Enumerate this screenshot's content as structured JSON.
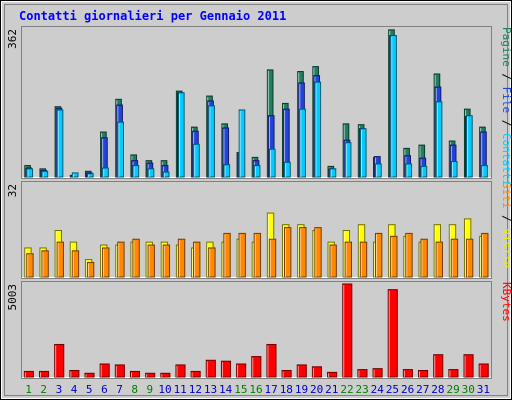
{
  "chart_data": {
    "type": "bar",
    "title": "Contatti giornalieri per Gennaio 2011",
    "categories": [
      "1",
      "2",
      "3",
      "4",
      "5",
      "6",
      "7",
      "8",
      "9",
      "10",
      "11",
      "12",
      "13",
      "14",
      "15",
      "16",
      "17",
      "18",
      "19",
      "20",
      "21",
      "22",
      "23",
      "24",
      "25",
      "26",
      "27",
      "28",
      "29",
      "30",
      "31"
    ],
    "weekend_days": [
      "1",
      "2",
      "8",
      "9",
      "15",
      "16",
      "22",
      "23",
      "29",
      "30"
    ],
    "panels": [
      {
        "id": "hits",
        "max_label": "362",
        "ylim": [
          0,
          362
        ],
        "series": [
          {
            "name": "Pagine",
            "color": "#1f7f5f",
            "values": [
              28,
              20,
              172,
              4,
              14,
              110,
              190,
              54,
              40,
              40,
              210,
              122,
              198,
              130,
              60,
              48,
              262,
              180,
              258,
              270,
              26,
              130,
              128,
              48,
              360,
              70,
              78,
              252,
              88,
              166,
              122
            ]
          },
          {
            "name": "File",
            "color": "#2244dd",
            "values": [
              22,
              16,
              168,
              4,
              10,
              96,
              176,
              40,
              34,
              28,
              206,
              112,
              186,
              120,
              56,
              40,
              150,
              166,
              230,
              248,
              20,
              90,
              118,
              50,
              346,
              52,
              46,
              220,
              78,
              148,
              110
            ]
          },
          {
            "name": "Contatti",
            "color": "#00ccff",
            "values": [
              20,
              14,
              164,
              10,
              8,
              22,
              134,
              28,
              20,
              12,
              206,
              80,
              174,
              30,
              164,
              28,
              68,
              36,
              166,
              232,
              20,
              84,
              118,
              32,
              346,
              32,
              26,
              184,
              38,
              150,
              28
            ]
          }
        ]
      },
      {
        "id": "visits",
        "max_label": "32",
        "ylim": [
          0,
          32
        ],
        "series": [
          {
            "name": "Visite",
            "color": "#ffff00",
            "values": [
              10,
              10,
              16,
              12,
              6,
              11,
              11,
              12,
              12,
              12,
              11,
              10,
              12,
              12,
              13,
              12,
              22,
              18,
              18,
              16,
              12,
              16,
              18,
              12,
              18,
              14,
              12,
              18,
              18,
              20,
              14
            ]
          },
          {
            "name": "Siti",
            "color": "#ff8800",
            "values": [
              8,
              9,
              12,
              9,
              5,
              10,
              12,
              13,
              11,
              11,
              13,
              12,
              10,
              15,
              15,
              15,
              13,
              17,
              17,
              17,
              11,
              12,
              12,
              15,
              14,
              15,
              13,
              12,
              13,
              13,
              15
            ]
          }
        ]
      },
      {
        "id": "kbytes",
        "max_label": "5003",
        "ylim": [
          0,
          5003
        ],
        "series": [
          {
            "name": "KBytes",
            "color": "#ff0000",
            "values": [
              300,
              300,
              1750,
              350,
              200,
              700,
              650,
              300,
              200,
              200,
              650,
              300,
              900,
              850,
              700,
              1100,
              1750,
              350,
              650,
              550,
              250,
              5003,
              400,
              450,
              4700,
              400,
              350,
              1200,
              400,
              1200,
              700
            ]
          }
        ]
      }
    ],
    "right_legends": [
      {
        "parts": [
          {
            "text": "Pagine",
            "color": "#1f7f5f"
          },
          {
            "text": " / ",
            "color": "#000000"
          },
          {
            "text": "File",
            "color": "#2244dd"
          },
          {
            "text": " / ",
            "color": "#000000"
          },
          {
            "text": "Contatti",
            "color": "#00ccff"
          }
        ]
      },
      {
        "parts": [
          {
            "text": "Siti",
            "color": "#ff8800"
          },
          {
            "text": " / ",
            "color": "#000000"
          },
          {
            "text": "Visite",
            "color": "#eeee00"
          }
        ]
      },
      {
        "parts": [
          {
            "text": "KBytes",
            "color": "#ff0000"
          }
        ]
      }
    ],
    "colors": {
      "background": "#cdcdcd",
      "title": "#0000ff",
      "weekday_label": "#0000cc",
      "weekend_label": "#008000"
    }
  }
}
